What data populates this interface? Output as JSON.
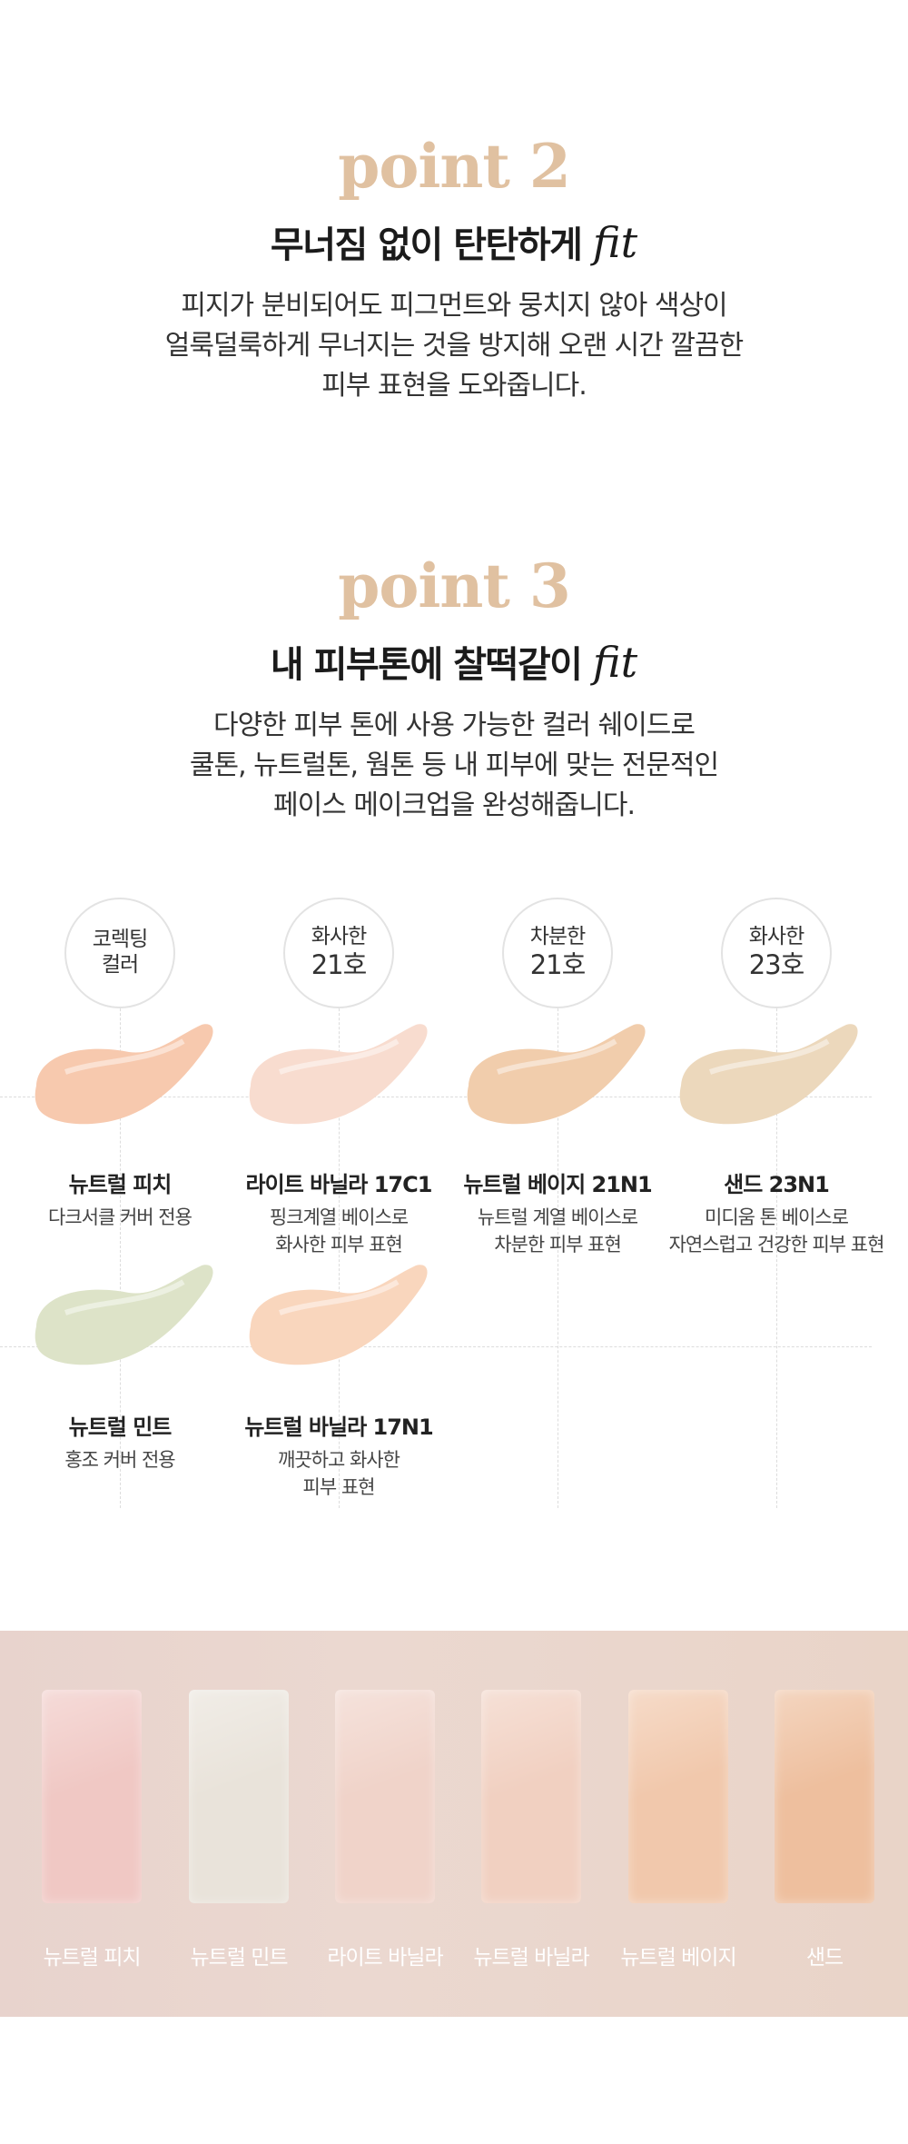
{
  "point2": {
    "label": "point 2",
    "heading": "무너짐 없이 탄탄하게",
    "heading_fit": "fit",
    "desc": [
      "피지가 분비되어도 피그먼트와 뭉치지 않아 색상이",
      "얼룩덜룩하게 무너지는 것을 방지해 오랜 시간 깔끔한",
      "피부 표현을 도와줍니다."
    ]
  },
  "point3": {
    "label": "point 3",
    "heading": "내 피부톤에 찰떡같이",
    "heading_fit": "fit",
    "desc": [
      "다양한 피부 톤에 사용 가능한 컬러 쉐이드로",
      "쿨톤, 뉴트럴톤, 웜톤 등 내 피부에 맞는 전문적인",
      "페이스 메이크업을 완성해줍니다."
    ]
  },
  "tones": [
    {
      "line1": "코렉팅",
      "line2": "컬러"
    },
    {
      "line1": "화사한",
      "line2": "21호"
    },
    {
      "line1": "차분한",
      "line2": "21호"
    },
    {
      "line1": "화사한",
      "line2": "23호"
    }
  ],
  "shades": [
    {
      "name": "뉴트럴 피치",
      "desc": [
        "다크서클 커버 전용"
      ],
      "color": "#f7c9ae"
    },
    {
      "name": "라이트 바닐라 17C1",
      "desc": [
        "핑크계열 베이스로",
        "화사한 피부 표현"
      ],
      "color": "#f8dccf"
    },
    {
      "name": "뉴트럴 베이지 21N1",
      "desc": [
        "뉴트럴 계열 베이스로",
        "차분한 피부 표현"
      ],
      "color": "#f1cdac"
    },
    {
      "name": "샌드 23N1",
      "desc": [
        "미디움 톤 베이스로",
        "자연스럽고 건강한 피부 표현"
      ],
      "color": "#ecd8bc"
    },
    {
      "name": "뉴트럴 민트",
      "desc": [
        "홍조 커버 전용"
      ],
      "color": "#dde3c8"
    },
    {
      "name": "뉴트럴 바닐라 17N1",
      "desc": [
        "깨끗하고 화사한",
        "피부 표현"
      ],
      "color": "#f9d6bd"
    }
  ],
  "skin_swatches": [
    {
      "label": "뉴트럴 피치",
      "color": "#f0c8c4"
    },
    {
      "label": "뉴트럴 민트",
      "color": "#e9e3da"
    },
    {
      "label": "라이트 바닐라",
      "color": "#f0d3c9"
    },
    {
      "label": "뉴트럴 바닐라",
      "color": "#f1d0c1"
    },
    {
      "label": "뉴트럴 베이지",
      "color": "#f1c8ac"
    },
    {
      "label": "샌드",
      "color": "#eebf9e"
    }
  ]
}
